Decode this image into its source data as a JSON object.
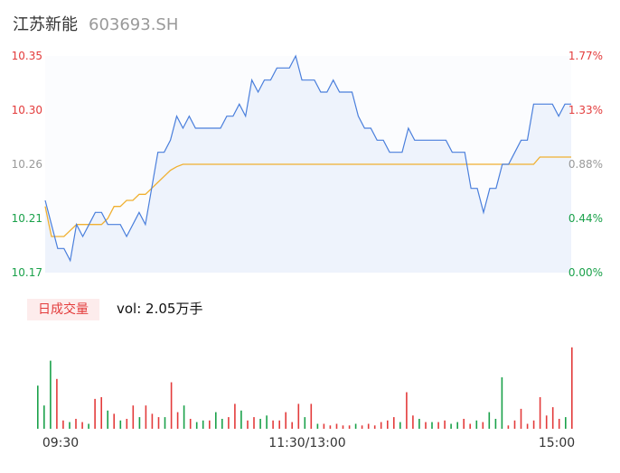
{
  "header": {
    "name": "江苏新能",
    "code": "603693.SH"
  },
  "volume": {
    "badge": "日成交量",
    "text": "vol: 2.05万手"
  },
  "colors": {
    "price_line": "#4a7fdc",
    "avg_line": "#f0b030",
    "up": "#e33b3b",
    "down": "#1aa14a",
    "neutral": "#999999"
  },
  "chart_data": {
    "type": "line",
    "prev_close": 10.17,
    "y_left_ticks": [
      "10.35",
      "10.30",
      "10.26",
      "10.21",
      "10.17"
    ],
    "y_right_ticks": [
      "1.77%",
      "1.33%",
      "0.88%",
      "0.44%",
      "0.00%"
    ],
    "ylim": [
      10.17,
      10.35
    ],
    "x_ticks": [
      "09:30",
      "11:30/13:00",
      "15:00"
    ],
    "series": [
      {
        "values": [
          10.23,
          10.21,
          10.19,
          10.19,
          10.18,
          10.21,
          10.2,
          10.21,
          10.22,
          10.22,
          10.21,
          10.21,
          10.21,
          10.2,
          10.21,
          10.22,
          10.21,
          10.24,
          10.27,
          10.27,
          10.28,
          10.3,
          10.29,
          10.3,
          10.29,
          10.29,
          10.29,
          10.29,
          10.29,
          10.3,
          10.3,
          10.31,
          10.3,
          10.33,
          10.32,
          10.33,
          10.33,
          10.34,
          10.34,
          10.34,
          10.35,
          10.33,
          10.33,
          10.33,
          10.32,
          10.32,
          10.33,
          10.32,
          10.32,
          10.32,
          10.3,
          10.29,
          10.29,
          10.28,
          10.28,
          10.27,
          10.27,
          10.27,
          10.29,
          10.28,
          10.28,
          10.28,
          10.28,
          10.28,
          10.28,
          10.27,
          10.27,
          10.27,
          10.24,
          10.24,
          10.22,
          10.24,
          10.24,
          10.26,
          10.26,
          10.27,
          10.28,
          10.28,
          10.31,
          10.31,
          10.31,
          10.31,
          10.3,
          10.31,
          10.31
        ]
      },
      {
        "values": [
          10.225,
          10.2,
          10.2,
          10.2,
          10.205,
          10.21,
          10.21,
          10.21,
          10.21,
          10.21,
          10.215,
          10.225,
          10.225,
          10.23,
          10.23,
          10.235,
          10.235,
          10.24,
          10.245,
          10.25,
          10.255,
          10.258,
          10.26,
          10.26,
          10.26,
          10.26,
          10.26,
          10.26,
          10.26,
          10.26,
          10.26,
          10.26,
          10.26,
          10.26,
          10.26,
          10.26,
          10.26,
          10.26,
          10.26,
          10.26,
          10.26,
          10.26,
          10.26,
          10.26,
          10.26,
          10.26,
          10.26,
          10.26,
          10.26,
          10.26,
          10.26,
          10.26,
          10.26,
          10.26,
          10.26,
          10.26,
          10.26,
          10.26,
          10.26,
          10.26,
          10.26,
          10.26,
          10.26,
          10.26,
          10.26,
          10.26,
          10.26,
          10.26,
          10.26,
          10.26,
          10.26,
          10.26,
          10.26,
          10.26,
          10.26,
          10.26,
          10.26,
          10.26,
          10.26,
          10.266,
          10.266,
          10.266,
          10.266,
          10.266,
          10.266
        ]
      }
    ],
    "volume_bars": [
      {
        "v": 0.52,
        "c": "down"
      },
      {
        "v": 0.28,
        "c": "down"
      },
      {
        "v": 0.82,
        "c": "down"
      },
      {
        "v": 0.6,
        "c": "up"
      },
      {
        "v": 0.1,
        "c": "up"
      },
      {
        "v": 0.08,
        "c": "down"
      },
      {
        "v": 0.12,
        "c": "up"
      },
      {
        "v": 0.08,
        "c": "up"
      },
      {
        "v": 0.06,
        "c": "down"
      },
      {
        "v": 0.36,
        "c": "up"
      },
      {
        "v": 0.38,
        "c": "up"
      },
      {
        "v": 0.22,
        "c": "down"
      },
      {
        "v": 0.18,
        "c": "up"
      },
      {
        "v": 0.1,
        "c": "down"
      },
      {
        "v": 0.12,
        "c": "up"
      },
      {
        "v": 0.28,
        "c": "up"
      },
      {
        "v": 0.14,
        "c": "down"
      },
      {
        "v": 0.28,
        "c": "up"
      },
      {
        "v": 0.18,
        "c": "up"
      },
      {
        "v": 0.14,
        "c": "up"
      },
      {
        "v": 0.14,
        "c": "down"
      },
      {
        "v": 0.56,
        "c": "up"
      },
      {
        "v": 0.2,
        "c": "up"
      },
      {
        "v": 0.28,
        "c": "down"
      },
      {
        "v": 0.12,
        "c": "up"
      },
      {
        "v": 0.08,
        "c": "down"
      },
      {
        "v": 0.1,
        "c": "down"
      },
      {
        "v": 0.1,
        "c": "up"
      },
      {
        "v": 0.2,
        "c": "down"
      },
      {
        "v": 0.12,
        "c": "down"
      },
      {
        "v": 0.14,
        "c": "up"
      },
      {
        "v": 0.3,
        "c": "up"
      },
      {
        "v": 0.22,
        "c": "down"
      },
      {
        "v": 0.1,
        "c": "up"
      },
      {
        "v": 0.14,
        "c": "up"
      },
      {
        "v": 0.12,
        "c": "down"
      },
      {
        "v": 0.16,
        "c": "down"
      },
      {
        "v": 0.1,
        "c": "up"
      },
      {
        "v": 0.1,
        "c": "up"
      },
      {
        "v": 0.2,
        "c": "up"
      },
      {
        "v": 0.08,
        "c": "up"
      },
      {
        "v": 0.3,
        "c": "up"
      },
      {
        "v": 0.14,
        "c": "down"
      },
      {
        "v": 0.3,
        "c": "up"
      },
      {
        "v": 0.06,
        "c": "down"
      },
      {
        "v": 0.06,
        "c": "up"
      },
      {
        "v": 0.04,
        "c": "up"
      },
      {
        "v": 0.06,
        "c": "up"
      },
      {
        "v": 0.04,
        "c": "up"
      },
      {
        "v": 0.04,
        "c": "up"
      },
      {
        "v": 0.06,
        "c": "down"
      },
      {
        "v": 0.04,
        "c": "up"
      },
      {
        "v": 0.06,
        "c": "up"
      },
      {
        "v": 0.04,
        "c": "up"
      },
      {
        "v": 0.08,
        "c": "up"
      },
      {
        "v": 0.1,
        "c": "up"
      },
      {
        "v": 0.14,
        "c": "up"
      },
      {
        "v": 0.08,
        "c": "down"
      },
      {
        "v": 0.44,
        "c": "up"
      },
      {
        "v": 0.16,
        "c": "up"
      },
      {
        "v": 0.12,
        "c": "down"
      },
      {
        "v": 0.08,
        "c": "up"
      },
      {
        "v": 0.08,
        "c": "down"
      },
      {
        "v": 0.08,
        "c": "up"
      },
      {
        "v": 0.1,
        "c": "up"
      },
      {
        "v": 0.06,
        "c": "down"
      },
      {
        "v": 0.08,
        "c": "down"
      },
      {
        "v": 0.12,
        "c": "up"
      },
      {
        "v": 0.06,
        "c": "up"
      },
      {
        "v": 0.1,
        "c": "down"
      },
      {
        "v": 0.08,
        "c": "up"
      },
      {
        "v": 0.2,
        "c": "down"
      },
      {
        "v": 0.12,
        "c": "down"
      },
      {
        "v": 0.62,
        "c": "down"
      },
      {
        "v": 0.04,
        "c": "up"
      },
      {
        "v": 0.1,
        "c": "up"
      },
      {
        "v": 0.24,
        "c": "up"
      },
      {
        "v": 0.06,
        "c": "up"
      },
      {
        "v": 0.1,
        "c": "up"
      },
      {
        "v": 0.38,
        "c": "up"
      },
      {
        "v": 0.16,
        "c": "up"
      },
      {
        "v": 0.26,
        "c": "up"
      },
      {
        "v": 0.12,
        "c": "up"
      },
      {
        "v": 0.14,
        "c": "down"
      },
      {
        "v": 0.98,
        "c": "up"
      }
    ]
  }
}
